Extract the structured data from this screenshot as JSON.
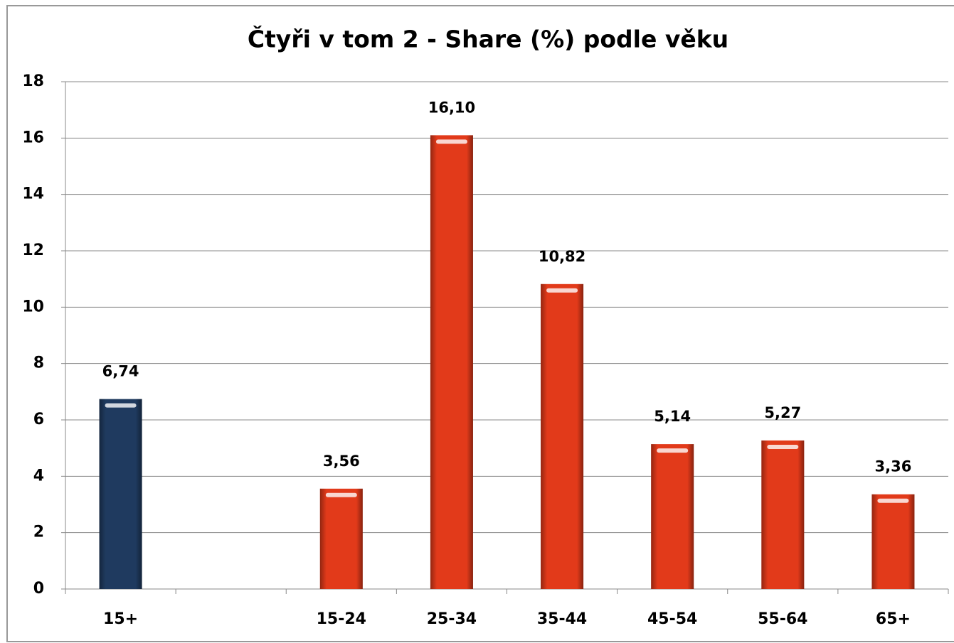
{
  "chart_data": {
    "type": "bar",
    "title": "Čtyři v tom 2 - Share (%) podle věku",
    "categories": [
      "15+",
      null,
      "15-24",
      "25-34",
      "35-44",
      "45-54",
      "55-64",
      "65+"
    ],
    "values": [
      6.74,
      null,
      3.56,
      16.1,
      10.82,
      5.14,
      5.27,
      3.36
    ],
    "value_labels": [
      "6,74",
      null,
      "3,56",
      "16,10",
      "10,82",
      "5,14",
      "5,27",
      "3,36"
    ],
    "colors": [
      "#1f3a5f",
      null,
      "#e23a1a",
      "#e23a1a",
      "#e23a1a",
      "#e23a1a",
      "#e23a1a",
      "#e23a1a"
    ],
    "ylim": [
      0,
      18
    ],
    "yticks": [
      0,
      2,
      4,
      6,
      8,
      10,
      12,
      14,
      16,
      18
    ],
    "grid": true
  }
}
